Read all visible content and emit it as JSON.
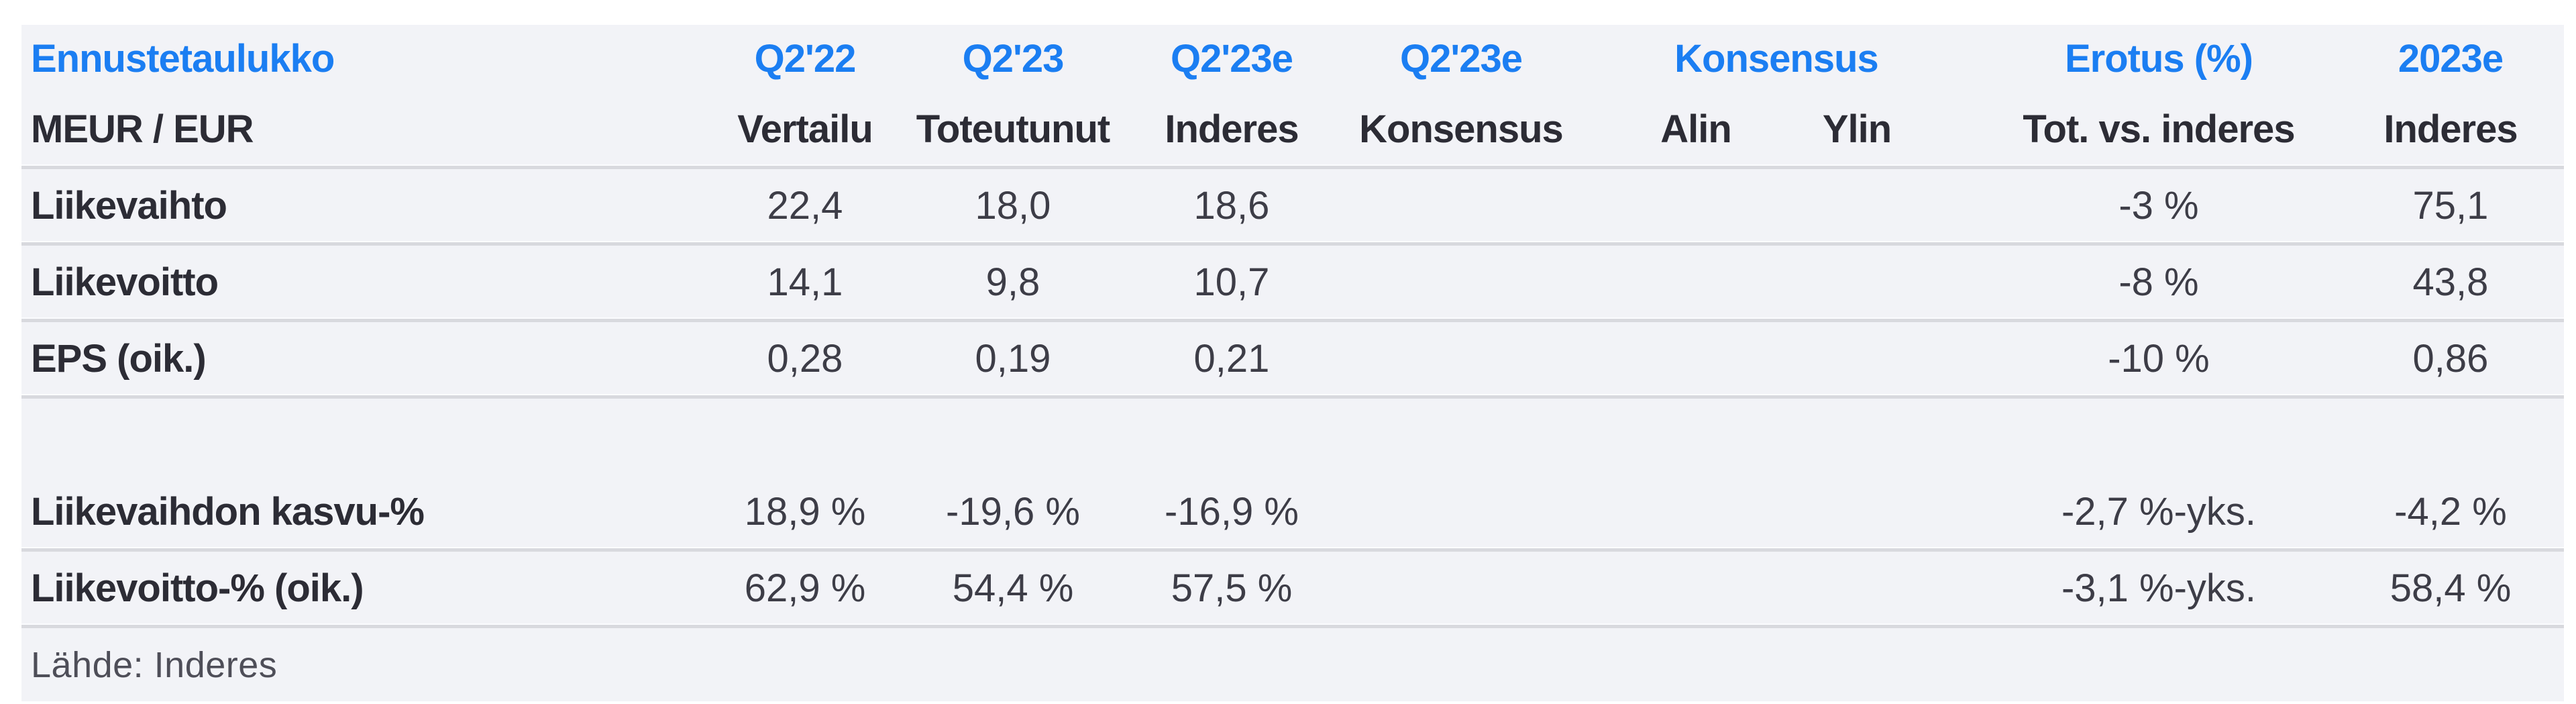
{
  "colors": {
    "accent_blue": "#1b7ef2",
    "band_background": "#f2f3f7",
    "separator": "#d8d9de",
    "label_text": "#2c2c35",
    "value_text": "#3d3d47"
  },
  "header": {
    "title": "Ennustetaulukko",
    "unit": "MEUR / EUR",
    "c1_top": "Q2'22",
    "c1_sub": "Vertailu",
    "c2_top": "Q2'23",
    "c2_sub": "Toteutunut",
    "c3_top": "Q2'23e",
    "c3_sub": "Inderes",
    "c4_top": "Q2'23e",
    "c4_sub": "Konsensus",
    "group_top": "Konsensus",
    "g1_sub": "Alin",
    "g2_sub": "Ylin",
    "c7_top": "Erotus (%)",
    "c7_sub": "Tot. vs. inderes",
    "c8_top": "2023e",
    "c8_sub": "Inderes"
  },
  "rows": [
    {
      "label": "Liikevaihto",
      "spacer_before": false,
      "values": [
        "22,4",
        "18,0",
        "18,6",
        "",
        "",
        "",
        "-3 %",
        "75,1"
      ]
    },
    {
      "label": "Liikevoitto",
      "spacer_before": false,
      "values": [
        "14,1",
        "9,8",
        "10,7",
        "",
        "",
        "",
        "-8 %",
        "43,8"
      ]
    },
    {
      "label": "EPS (oik.)",
      "spacer_before": false,
      "values": [
        "0,28",
        "0,19",
        "0,21",
        "",
        "",
        "",
        "-10 %",
        "0,86"
      ]
    },
    {
      "label": "Liikevaihdon kasvu-%",
      "spacer_before": true,
      "values": [
        "18,9 %",
        "-19,6 %",
        "-16,9 %",
        "",
        "",
        "",
        "-2,7 %-yks.",
        "-4,2 %"
      ]
    },
    {
      "label": "Liikevoitto-% (oik.)",
      "spacer_before": false,
      "values": [
        "62,9 %",
        "54,4 %",
        "57,5 %",
        "",
        "",
        "",
        "-3,1 %-yks.",
        "58,4 %"
      ]
    }
  ],
  "footer": {
    "source": "Lähde: Inderes"
  }
}
